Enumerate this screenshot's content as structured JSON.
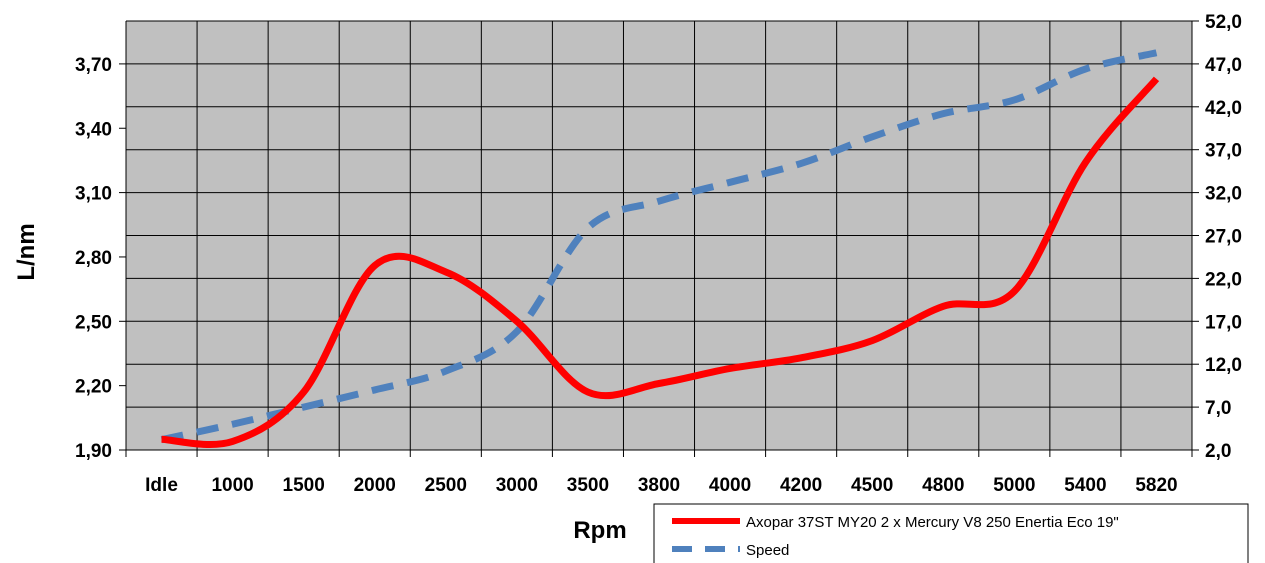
{
  "chart_data": {
    "type": "line",
    "categories": [
      "Idle",
      "1000",
      "1500",
      "2000",
      "2500",
      "3000",
      "3500",
      "3800",
      "4000",
      "4200",
      "4500",
      "4800",
      "5000",
      "5400",
      "5820"
    ],
    "xlabel": "Rpm",
    "ylabel": "L/nm",
    "ylim": [
      1.9,
      3.9
    ],
    "y_ticks": [
      "1,90",
      "2,20",
      "2,50",
      "2,80",
      "3,10",
      "3,40",
      "3,70"
    ],
    "y2lim": [
      2.0,
      52.0
    ],
    "y2_ticks": [
      "2,0",
      "7,0",
      "12,0",
      "17,0",
      "22,0",
      "27,0",
      "32,0",
      "37,0",
      "42,0",
      "47,0",
      "52,0"
    ],
    "grid": true,
    "legend_position": "bottom-right",
    "series": [
      {
        "name": "Axopar 37ST MY20 2 x Mercury V8 250 Enertia Eco 19\"",
        "axis": "left",
        "color": "#ff0000",
        "style": "solid",
        "values": [
          1.95,
          1.94,
          2.17,
          2.76,
          2.73,
          2.5,
          2.17,
          2.21,
          2.28,
          2.33,
          2.41,
          2.57,
          2.64,
          3.24,
          3.63
        ]
      },
      {
        "name": "Speed",
        "axis": "right",
        "color": "#4f81bd",
        "style": "dashed",
        "values": [
          3.2,
          5.0,
          7.0,
          9.0,
          11.2,
          15.8,
          27.9,
          31.0,
          33.2,
          35.4,
          38.5,
          41.2,
          42.8,
          46.4,
          48.3
        ]
      }
    ]
  }
}
